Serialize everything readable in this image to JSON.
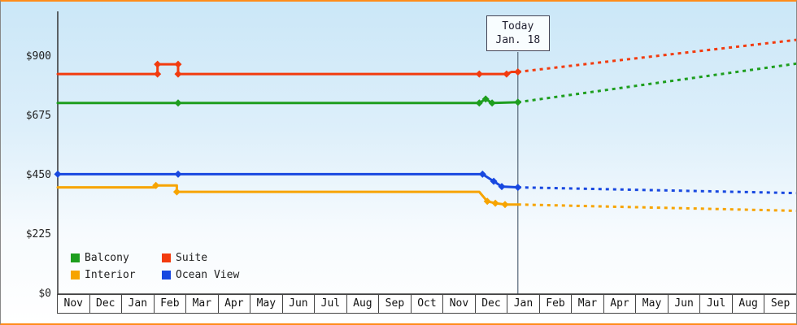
{
  "app": {
    "name": "cabin-price-history-chart"
  },
  "chart_data": {
    "type": "line",
    "title": "",
    "grid": false,
    "legend_position": "bottom-left",
    "y_axis": {
      "ticks": [
        0,
        225,
        450,
        675,
        900
      ],
      "labels": [
        "$0",
        "$225",
        "$450",
        "$675",
        "$900"
      ],
      "max": 1000
    },
    "x_axis": {
      "months": [
        "Nov",
        "Dec",
        "Jan",
        "Feb",
        "Mar",
        "Apr",
        "May",
        "Jun",
        "Jul",
        "Aug",
        "Sep",
        "Oct",
        "Nov",
        "Dec",
        "Jan",
        "Feb",
        "Mar",
        "Apr",
        "May",
        "Jun",
        "Jul",
        "Aug",
        "Sep"
      ]
    },
    "today": {
      "label_line1": "Today",
      "label_line2": "Jan. 18",
      "x": 14.3
    },
    "series": [
      {
        "name": "Balcony",
        "color": "#1e9e1e",
        "history": [
          [
            0,
            725
          ],
          [
            3.74,
            725
          ],
          [
            13.1,
            725
          ],
          [
            13.3,
            740
          ],
          [
            13.5,
            725
          ],
          [
            14.3,
            728
          ]
        ],
        "markers": [
          [
            3.74,
            725
          ],
          [
            13.1,
            725
          ],
          [
            13.3,
            740
          ],
          [
            13.5,
            725
          ],
          [
            14.3,
            728
          ]
        ],
        "forecast": [
          [
            14.3,
            728
          ],
          [
            23,
            875
          ]
        ]
      },
      {
        "name": "Suite",
        "color": "#f23b0e",
        "history": [
          [
            0,
            835
          ],
          [
            3.1,
            835
          ],
          [
            3.1,
            872
          ],
          [
            3.74,
            872
          ],
          [
            3.74,
            835
          ],
          [
            13.1,
            835
          ],
          [
            13.95,
            835
          ],
          [
            14.1,
            843
          ],
          [
            14.3,
            843
          ]
        ],
        "markers": [
          [
            3.1,
            835
          ],
          [
            3.1,
            872
          ],
          [
            3.74,
            872
          ],
          [
            3.74,
            835
          ],
          [
            13.1,
            835
          ],
          [
            13.95,
            835
          ],
          [
            14.3,
            843
          ]
        ],
        "forecast": [
          [
            14.3,
            843
          ],
          [
            23,
            965
          ]
        ]
      },
      {
        "name": "Interior",
        "color": "#f7a400",
        "history": [
          [
            0,
            405
          ],
          [
            3.05,
            405
          ],
          [
            3.05,
            412
          ],
          [
            3.7,
            412
          ],
          [
            3.7,
            388
          ],
          [
            13.1,
            388
          ],
          [
            13.35,
            352
          ],
          [
            13.6,
            345
          ],
          [
            13.9,
            340
          ],
          [
            14.3,
            340
          ]
        ],
        "markers": [
          [
            3.05,
            412
          ],
          [
            3.7,
            388
          ],
          [
            13.35,
            352
          ],
          [
            13.6,
            345
          ],
          [
            13.9,
            340
          ]
        ],
        "forecast": [
          [
            14.3,
            340
          ],
          [
            23,
            316
          ]
        ]
      },
      {
        "name": "Ocean View",
        "color": "#1848e0",
        "history": [
          [
            0,
            455
          ],
          [
            3.74,
            455
          ],
          [
            13.2,
            455
          ],
          [
            13.55,
            428
          ],
          [
            13.8,
            408
          ],
          [
            14.3,
            405
          ]
        ],
        "markers": [
          [
            0,
            455
          ],
          [
            3.74,
            455
          ],
          [
            13.2,
            455
          ],
          [
            13.55,
            428
          ],
          [
            13.8,
            408
          ],
          [
            14.3,
            405
          ]
        ],
        "forecast": [
          [
            14.3,
            405
          ],
          [
            23,
            383
          ]
        ]
      }
    ],
    "legend": {
      "rows": [
        [
          "Balcony",
          "Suite"
        ],
        [
          "Interior",
          "Ocean View"
        ]
      ]
    }
  },
  "colors": {
    "frame_border": "#ff8c1a",
    "axis": "#333333",
    "today_line": "#556677",
    "background_top": "#cbe7f8",
    "background_bottom": "#ffffff"
  }
}
